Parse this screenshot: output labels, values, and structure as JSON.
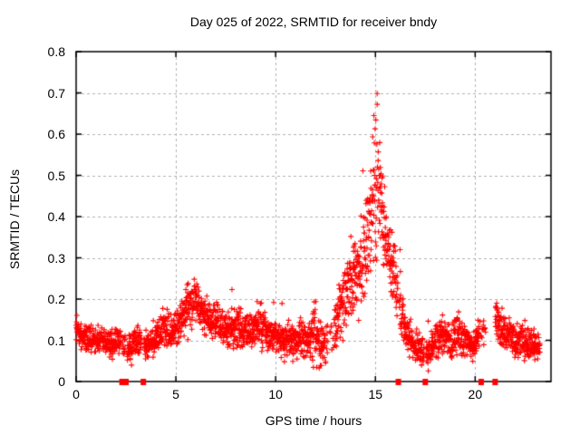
{
  "page": {
    "background": "#ffffff",
    "kind": "gnuplot scatter plot screenshot"
  },
  "chart_data": {
    "type": "scatter",
    "title": "Day 025 of 2022, SRMTID for receiver bndy",
    "xlabel": "GPS time / hours",
    "ylabel": "SRMTID / TECUs",
    "xlim": [
      0,
      23.8
    ],
    "ylim": [
      0,
      0.8
    ],
    "xticks": {
      "values": [
        0,
        5,
        10,
        15,
        20
      ],
      "labels": [
        "0",
        "5",
        "10",
        "15",
        "20"
      ]
    },
    "yticks": {
      "values": [
        0,
        0.1,
        0.2,
        0.3,
        0.4,
        0.5,
        0.6,
        0.7,
        0.8
      ],
      "labels": [
        "0",
        "0.1",
        "0.2",
        "0.3",
        "0.4",
        "0.5",
        "0.6",
        "0.7",
        "0.8"
      ]
    },
    "grid": true,
    "grid_style": "dashed",
    "legend": "none",
    "series_name": "SRMTID",
    "marker": {
      "shape": "plus",
      "color": "#ff0000",
      "size": 7
    },
    "colors": {
      "grid": "#b0b0b0",
      "border": "#000000",
      "text": "#000000"
    },
    "peak": {
      "hour": 15.0,
      "value": 0.775
    },
    "baseline": {
      "typical_value": 0.1,
      "typical_spread": 0.05
    },
    "data_range_hours": [
      0,
      23.25
    ],
    "point_count": 2700,
    "seed": 20220125,
    "envelope_hour_center_halfspread": [
      [
        0.0,
        0.125,
        0.035
      ],
      [
        0.4,
        0.105,
        0.04
      ],
      [
        0.8,
        0.1,
        0.035
      ],
      [
        1.3,
        0.1,
        0.035
      ],
      [
        1.8,
        0.095,
        0.04
      ],
      [
        2.2,
        0.1,
        0.04
      ],
      [
        2.6,
        0.08,
        0.04
      ],
      [
        3.0,
        0.1,
        0.05
      ],
      [
        3.5,
        0.09,
        0.04
      ],
      [
        4.0,
        0.11,
        0.05
      ],
      [
        4.4,
        0.13,
        0.06
      ],
      [
        4.8,
        0.12,
        0.055
      ],
      [
        5.2,
        0.14,
        0.06
      ],
      [
        5.6,
        0.18,
        0.075
      ],
      [
        6.0,
        0.185,
        0.07
      ],
      [
        6.4,
        0.16,
        0.06
      ],
      [
        6.8,
        0.15,
        0.06
      ],
      [
        7.2,
        0.13,
        0.055
      ],
      [
        7.6,
        0.12,
        0.05
      ],
      [
        8.0,
        0.135,
        0.065
      ],
      [
        8.4,
        0.12,
        0.055
      ],
      [
        8.8,
        0.125,
        0.05
      ],
      [
        9.2,
        0.14,
        0.065
      ],
      [
        9.6,
        0.12,
        0.05
      ],
      [
        10.0,
        0.11,
        0.05
      ],
      [
        10.4,
        0.1,
        0.05
      ],
      [
        10.8,
        0.1,
        0.05
      ],
      [
        11.2,
        0.11,
        0.055
      ],
      [
        11.6,
        0.1,
        0.05
      ],
      [
        12.0,
        0.13,
        0.095
      ],
      [
        12.4,
        0.09,
        0.055
      ],
      [
        12.8,
        0.1,
        0.065
      ],
      [
        13.2,
        0.17,
        0.095
      ],
      [
        13.6,
        0.22,
        0.1
      ],
      [
        14.0,
        0.26,
        0.11
      ],
      [
        14.4,
        0.3,
        0.125
      ],
      [
        14.7,
        0.38,
        0.155
      ],
      [
        15.0,
        0.5,
        0.26
      ],
      [
        15.3,
        0.42,
        0.17
      ],
      [
        15.6,
        0.31,
        0.11
      ],
      [
        15.9,
        0.27,
        0.09
      ],
      [
        16.2,
        0.2,
        0.09
      ],
      [
        16.5,
        0.12,
        0.06
      ],
      [
        16.9,
        0.09,
        0.05
      ],
      [
        17.3,
        0.07,
        0.04
      ],
      [
        17.7,
        0.07,
        0.042
      ],
      [
        18.1,
        0.1,
        0.05
      ],
      [
        18.4,
        0.12,
        0.05
      ],
      [
        18.8,
        0.09,
        0.045
      ],
      [
        19.1,
        0.115,
        0.055
      ],
      [
        19.5,
        0.1,
        0.05
      ],
      [
        19.9,
        0.085,
        0.04
      ],
      [
        20.2,
        0.12,
        0.05
      ],
      [
        20.5,
        0.13,
        0.045
      ],
      [
        21.1,
        0.15,
        0.055
      ],
      [
        21.4,
        0.125,
        0.05
      ],
      [
        21.8,
        0.105,
        0.045
      ],
      [
        22.2,
        0.1,
        0.05
      ],
      [
        22.6,
        0.09,
        0.045
      ],
      [
        23.0,
        0.085,
        0.04
      ],
      [
        23.25,
        0.09,
        0.04
      ]
    ],
    "dropout_gaps_hours": [
      [
        2.25,
        2.34
      ],
      [
        2.46,
        2.55
      ],
      [
        3.28,
        3.4
      ],
      [
        12.62,
        12.72
      ],
      [
        16.12,
        16.18
      ],
      [
        17.44,
        17.54
      ],
      [
        20.55,
        21.0
      ]
    ],
    "sparse_regions_hour_hour_keepprob": [
      [
        12.45,
        12.95,
        0.55
      ],
      [
        20.2,
        20.55,
        0.35
      ]
    ],
    "zero_value_marker_hours": [
      2.3,
      2.5,
      3.37,
      16.15,
      17.5,
      20.3,
      21.0
    ]
  }
}
